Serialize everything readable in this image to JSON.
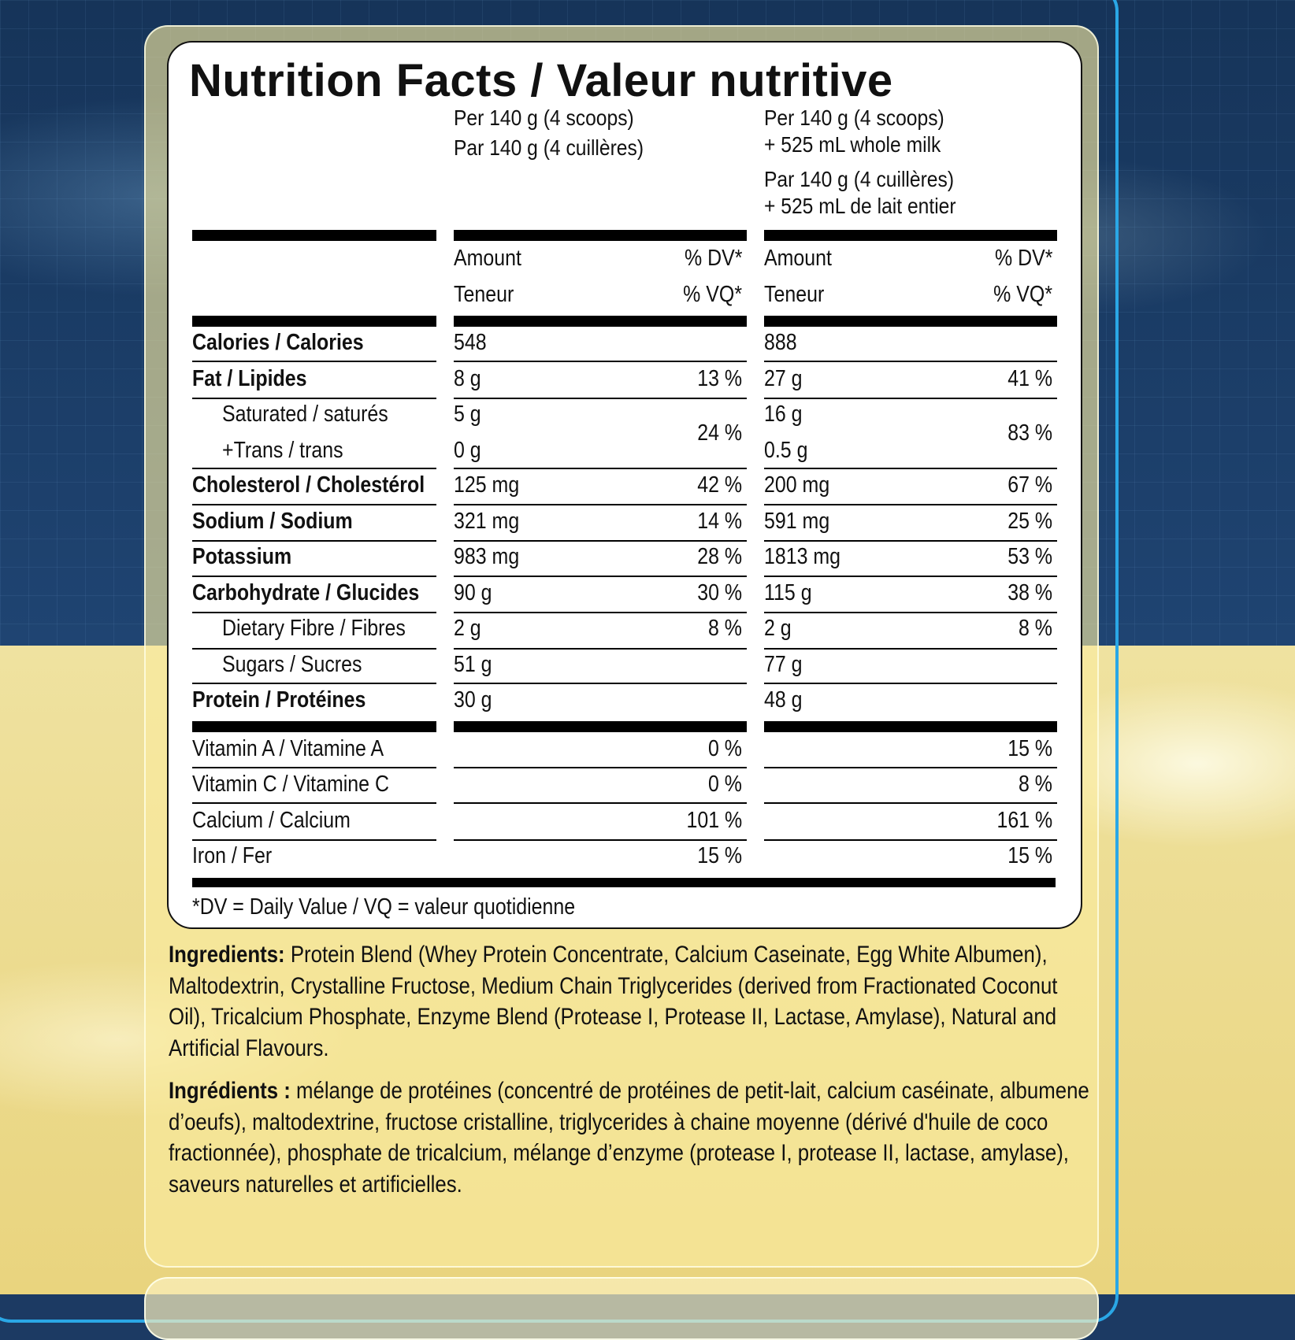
{
  "label": {
    "title": "Nutrition Facts / Valeur nutritive",
    "col1_header": [
      "Per 140 g (4 scoops)",
      "Par 140 g (4 cuillères)"
    ],
    "col2_header": [
      "Per 140 g (4 scoops)",
      "+ 525 mL whole milk",
      "Par 140 g (4 cuillères)",
      "+ 525 mL de lait entier"
    ],
    "amount_en": "Amount",
    "amount_fr": "Teneur",
    "dv_en": "% DV*",
    "dv_fr": "% VQ*",
    "nutrients": [
      {
        "name": "Calories / Calories",
        "bold": true,
        "indent": false,
        "c1_amount": "548",
        "c1_dv": "",
        "c2_amount": "888",
        "c2_dv": ""
      },
      {
        "name": "Fat / Lipides",
        "bold": true,
        "indent": false,
        "c1_amount": "8 g",
        "c1_dv": "13 %",
        "c2_amount": "27 g",
        "c2_dv": "41 %"
      },
      {
        "name": "Saturated / saturés",
        "bold": false,
        "indent": true,
        "c1_amount": "5 g",
        "c1_dv": "24 %",
        "c2_amount": "16 g",
        "c2_dv": "83 %"
      },
      {
        "name": "+Trans / trans",
        "bold": false,
        "indent": true,
        "c1_amount": "0 g",
        "c1_dv": "",
        "c2_amount": "0.5 g",
        "c2_dv": ""
      },
      {
        "name": "Cholesterol / Cholestérol",
        "bold": true,
        "indent": false,
        "c1_amount": "125 mg",
        "c1_dv": "42 %",
        "c2_amount": "200 mg",
        "c2_dv": "67 %"
      },
      {
        "name": "Sodium / Sodium",
        "bold": true,
        "indent": false,
        "c1_amount": "321 mg",
        "c1_dv": "14 %",
        "c2_amount": "591 mg",
        "c2_dv": "25 %"
      },
      {
        "name": "Potassium",
        "bold": true,
        "indent": false,
        "c1_amount": "983 mg",
        "c1_dv": "28 %",
        "c2_amount": "1813 mg",
        "c2_dv": "53 %"
      },
      {
        "name": "Carbohydrate / Glucides",
        "bold": true,
        "indent": false,
        "c1_amount": "90 g",
        "c1_dv": "30 %",
        "c2_amount": "115 g",
        "c2_dv": "38 %"
      },
      {
        "name": "Dietary Fibre / Fibres",
        "bold": false,
        "indent": true,
        "c1_amount": "2 g",
        "c1_dv": "8 %",
        "c2_amount": "2 g",
        "c2_dv": "8 %"
      },
      {
        "name": "Sugars / Sucres",
        "bold": false,
        "indent": true,
        "c1_amount": "51 g",
        "c1_dv": "",
        "c2_amount": "77 g",
        "c2_dv": ""
      },
      {
        "name": "Protein / Protéines",
        "bold": true,
        "indent": false,
        "c1_amount": "30 g",
        "c1_dv": "",
        "c2_amount": "48 g",
        "c2_dv": ""
      }
    ],
    "vitamins": [
      {
        "name": "Vitamin A / Vitamine A",
        "c1_dv": "0 %",
        "c2_dv": "15 %"
      },
      {
        "name": "Vitamin C / Vitamine C",
        "c1_dv": "0 %",
        "c2_dv": "8 %"
      },
      {
        "name": "Calcium / Calcium",
        "c1_dv": "101 %",
        "c2_dv": "161 %"
      },
      {
        "name": "Iron / Fer",
        "c1_dv": "15 %",
        "c2_dv": "15 %"
      }
    ],
    "footnote": "*DV = Daily Value / VQ = valeur quotidienne"
  },
  "ingredients_en": {
    "label": "Ingredients:",
    "text": " Protein Blend (Whey Protein Concentrate, Calcium Caseinate, Egg White Albumen), Maltodextrin, Crystalline Fructose, Medium Chain Triglycerides (derived from Fractionated Coconut Oil), Tricalcium Phosphate, Enzyme Blend (Protease I, Protease II, Lactase, Amylase), Natural and Artificial Flavours."
  },
  "ingredients_fr": {
    "label": "Ingrédients :",
    "text": " mélange de protéines (concentré de protéines de petit-lait, calcium caséinate, albumene d’oeufs), maltodextrine, fructose cristalline, triglycerides à chaine moyenne (dérivé d'huile de coco fractionnée), phosphate de tricalcium, mélange d’enzyme (protease I, protease II, lactase, amylase), saveurs naturelles et artificielles."
  },
  "colors": {
    "background_blue": "#1c3a63",
    "frame_blue": "#2aa7e6",
    "panel_yellow": "#efe2a0"
  }
}
